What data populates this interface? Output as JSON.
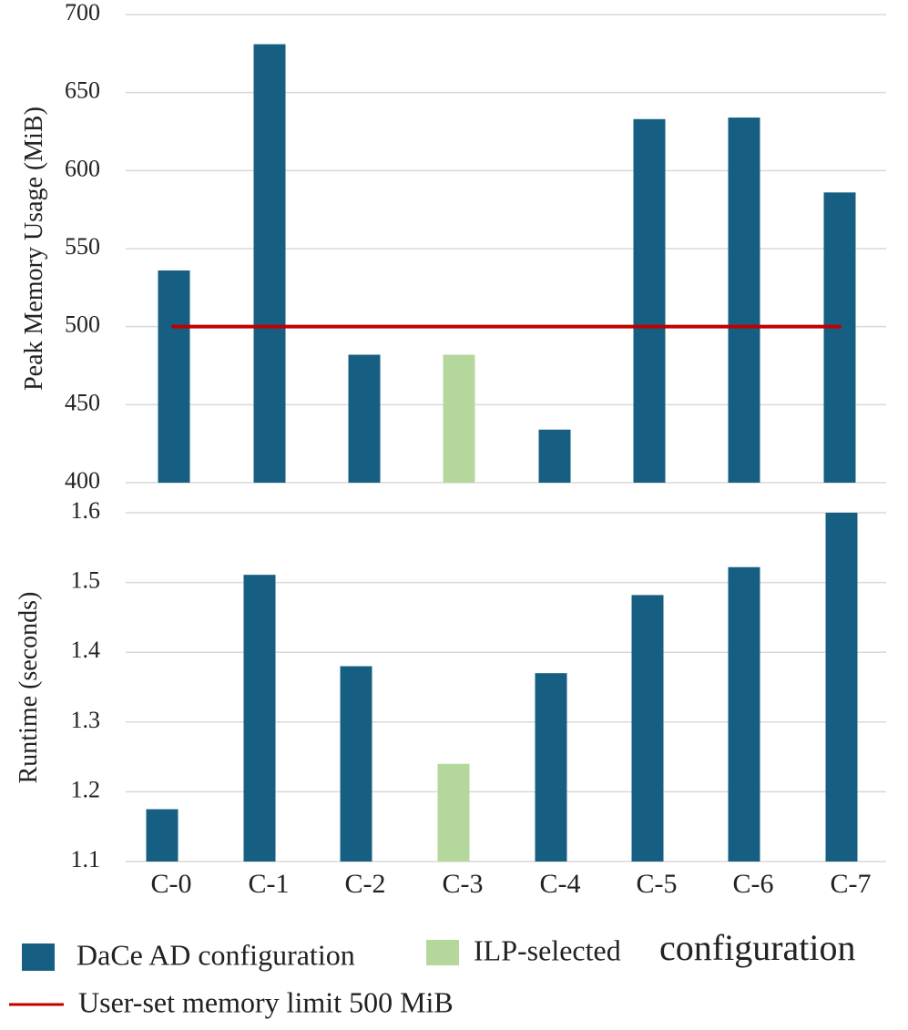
{
  "chart_data": [
    {
      "type": "bar",
      "name": "peak-memory",
      "ylabel": "Peak Memory Usage (MiB)",
      "xlabel": "",
      "categories": [
        "C-0",
        "C-1",
        "C-2",
        "C-3",
        "C-4",
        "C-5",
        "C-6",
        "C-7"
      ],
      "values": [
        536,
        681,
        482,
        482,
        434,
        633,
        634,
        586
      ],
      "highlight": [
        false,
        false,
        false,
        true,
        false,
        false,
        false,
        false
      ],
      "ylim": [
        400,
        700
      ],
      "yticks": [
        400,
        450,
        500,
        550,
        600,
        650,
        700
      ],
      "ytick_labels": [
        "400",
        "450",
        "500",
        "550",
        "600",
        "650",
        "700"
      ],
      "grid": true,
      "reference_line": {
        "value": 500,
        "label": "User-set memory limit 500 MiB",
        "color": "#c00000"
      },
      "show_xticklabels": false
    },
    {
      "type": "bar",
      "name": "runtime",
      "ylabel": "Runtime (seconds)",
      "xlabel": "",
      "categories": [
        "C-0",
        "C-1",
        "C-2",
        "C-3",
        "C-4",
        "C-5",
        "C-6",
        "C-7"
      ],
      "values": [
        1.175,
        1.511,
        1.38,
        1.24,
        1.37,
        1.482,
        1.522,
        1.6
      ],
      "highlight": [
        false,
        false,
        false,
        true,
        false,
        false,
        false,
        false
      ],
      "ylim": [
        1.1,
        1.6
      ],
      "yticks": [
        1.1,
        1.2,
        1.3,
        1.4,
        1.5,
        1.6
      ],
      "ytick_labels": [
        "1.1",
        "1.2",
        "1.3",
        "1.4",
        "1.5",
        "1.6"
      ],
      "grid": true,
      "show_xticklabels": true
    }
  ],
  "legend": {
    "position": "bottom",
    "entries": [
      {
        "label": "DaCe AD configuration",
        "kind": "bar",
        "color": "#165f82"
      },
      {
        "label": "ILP-selected",
        "label_suffix": "configuration",
        "kind": "bar",
        "color": "#b4d89c"
      },
      {
        "label": "User-set memory limit 500 MiB",
        "kind": "line",
        "color": "#c00000"
      }
    ]
  },
  "colors": {
    "primary_bar": "#165f82",
    "highlight_bar": "#b4d89c",
    "limit_line": "#c00000",
    "grid": "#d9d9d9",
    "text": "#222222"
  }
}
